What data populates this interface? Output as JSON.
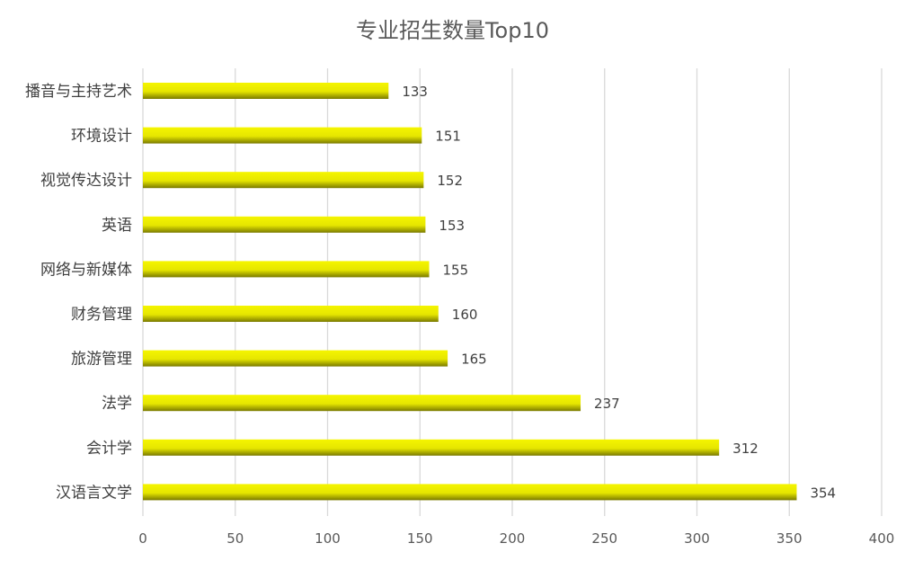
{
  "chart_data": {
    "type": "bar",
    "orientation": "horizontal",
    "title": "专业招生数量Top10",
    "xlabel": "",
    "ylabel": "",
    "categories": [
      "播音与主持艺术",
      "环境设计",
      "视觉传达设计",
      "英语",
      "网络与新媒体",
      "财务管理",
      "旅游管理",
      "法学",
      "会计学",
      "汉语言文学"
    ],
    "values": [
      133,
      151,
      152,
      153,
      155,
      160,
      165,
      237,
      312,
      354
    ],
    "xlim": [
      0,
      400
    ],
    "xticks": [
      "0",
      "50",
      "100",
      "150",
      "200",
      "250",
      "300",
      "350",
      "400"
    ],
    "grid": "vertical",
    "legend": "none",
    "data_labels": true,
    "colors": {
      "bar_top": "#f5f500",
      "bar_bottom": "#7a7a00",
      "grid": "#d9d9d9",
      "title": "#595959",
      "text": "#404040"
    }
  }
}
